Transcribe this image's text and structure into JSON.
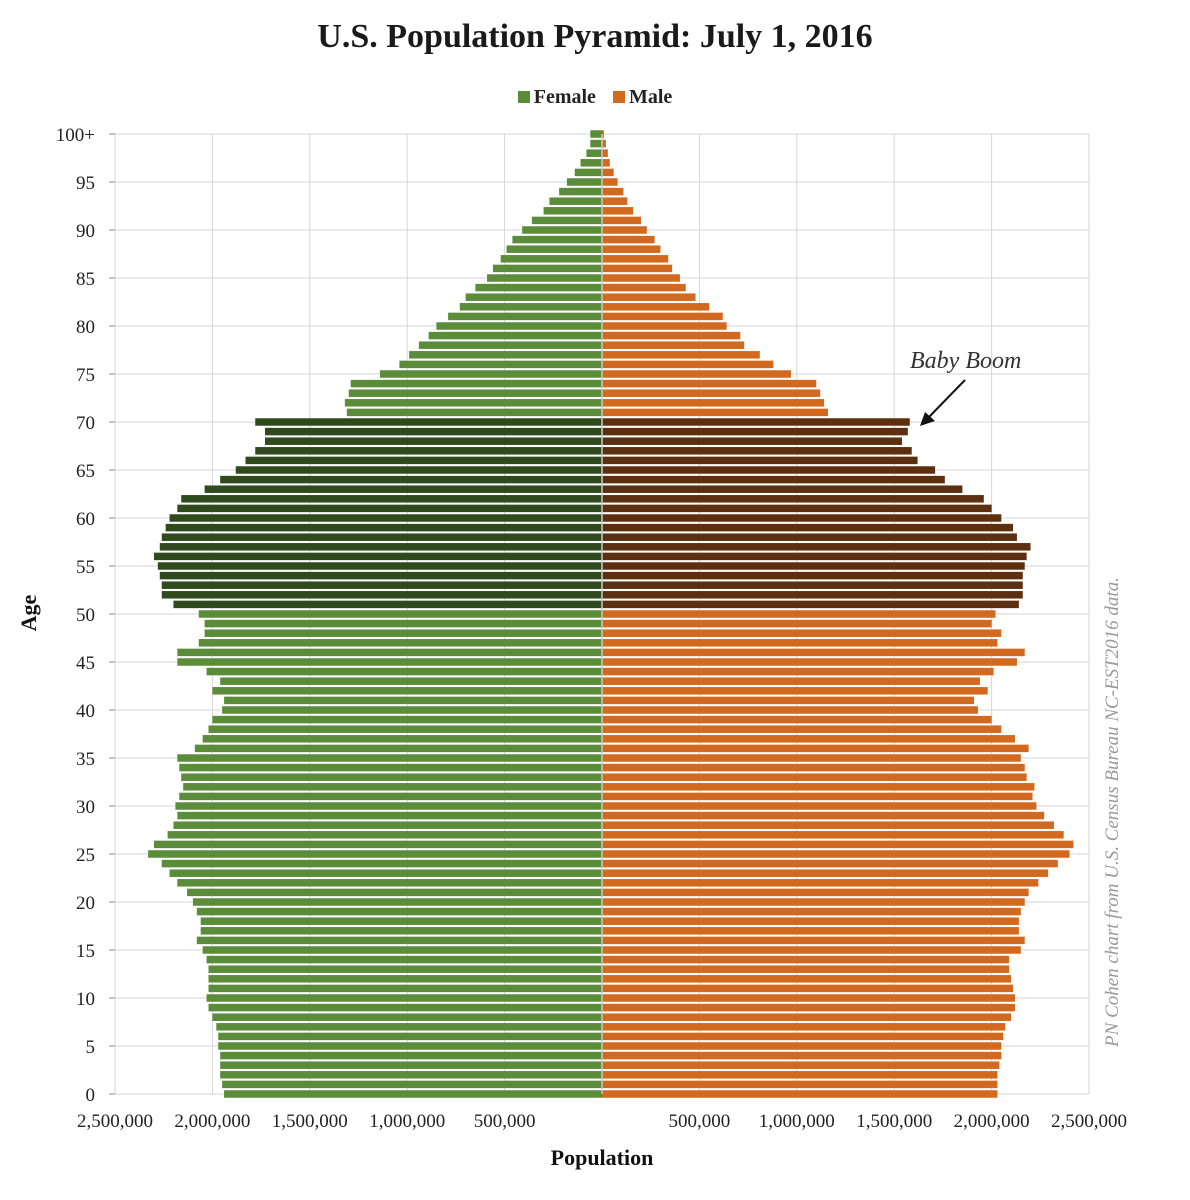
{
  "chart_data": {
    "type": "bar",
    "title": "U.S. Population Pyramid: July 1, 2016",
    "xlabel": "Population",
    "ylabel": "Age",
    "xlim": [
      -2500000,
      2500000
    ],
    "x_tick_labels": [
      "2,500,000",
      "2,000,000",
      "1,500,000",
      "1,000,000",
      "500,000",
      "",
      "500,000",
      "1,000,000",
      "1,500,000",
      "2,000,000",
      "2,500,000"
    ],
    "y_tick_labels": [
      "0",
      "5",
      "10",
      "15",
      "20",
      "25",
      "30",
      "35",
      "40",
      "45",
      "50",
      "55",
      "60",
      "65",
      "70",
      "75",
      "80",
      "85",
      "90",
      "95",
      "100+"
    ],
    "grid": true,
    "legend": "top-center",
    "categories": [
      "0",
      "1",
      "2",
      "3",
      "4",
      "5",
      "6",
      "7",
      "8",
      "9",
      "10",
      "11",
      "12",
      "13",
      "14",
      "15",
      "16",
      "17",
      "18",
      "19",
      "20",
      "21",
      "22",
      "23",
      "24",
      "25",
      "26",
      "27",
      "28",
      "29",
      "30",
      "31",
      "32",
      "33",
      "34",
      "35",
      "36",
      "37",
      "38",
      "39",
      "40",
      "41",
      "42",
      "43",
      "44",
      "45",
      "46",
      "47",
      "48",
      "49",
      "50",
      "51",
      "52",
      "53",
      "54",
      "55",
      "56",
      "57",
      "58",
      "59",
      "60",
      "61",
      "62",
      "63",
      "64",
      "65",
      "66",
      "67",
      "68",
      "69",
      "70",
      "71",
      "72",
      "73",
      "74",
      "75",
      "76",
      "77",
      "78",
      "79",
      "80",
      "81",
      "82",
      "83",
      "84",
      "85",
      "86",
      "87",
      "88",
      "89",
      "90",
      "91",
      "92",
      "93",
      "94",
      "95",
      "96",
      "97",
      "98",
      "99",
      "100+"
    ],
    "series": [
      {
        "name": "Female",
        "color": "#5b8c3a",
        "highlight_color": "#2f4a1c",
        "values": [
          1940000,
          1950000,
          1960000,
          1960000,
          1960000,
          1970000,
          1970000,
          1980000,
          2000000,
          2020000,
          2030000,
          2020000,
          2020000,
          2020000,
          2030000,
          2050000,
          2080000,
          2060000,
          2060000,
          2080000,
          2100000,
          2130000,
          2180000,
          2220000,
          2260000,
          2330000,
          2300000,
          2230000,
          2200000,
          2180000,
          2190000,
          2170000,
          2150000,
          2160000,
          2170000,
          2180000,
          2090000,
          2050000,
          2020000,
          2000000,
          1950000,
          1940000,
          2000000,
          1960000,
          2030000,
          2180000,
          2180000,
          2070000,
          2040000,
          2040000,
          2070000,
          2200000,
          2260000,
          2260000,
          2270000,
          2280000,
          2300000,
          2270000,
          2260000,
          2240000,
          2220000,
          2180000,
          2160000,
          2040000,
          1960000,
          1880000,
          1830000,
          1780000,
          1730000,
          1730000,
          1780000,
          1310000,
          1320000,
          1300000,
          1290000,
          1140000,
          1040000,
          990000,
          940000,
          890000,
          850000,
          790000,
          730000,
          700000,
          650000,
          590000,
          560000,
          520000,
          490000,
          460000,
          410000,
          360000,
          300000,
          270000,
          220000,
          180000,
          140000,
          110000,
          80000,
          60000,
          60000
        ]
      },
      {
        "name": "Male",
        "color": "#d2691e",
        "highlight_color": "#5c2f10",
        "values": [
          2030000,
          2030000,
          2030000,
          2040000,
          2050000,
          2050000,
          2060000,
          2070000,
          2100000,
          2120000,
          2120000,
          2110000,
          2100000,
          2090000,
          2090000,
          2150000,
          2170000,
          2140000,
          2140000,
          2150000,
          2170000,
          2190000,
          2240000,
          2290000,
          2340000,
          2400000,
          2420000,
          2370000,
          2320000,
          2270000,
          2230000,
          2210000,
          2220000,
          2180000,
          2170000,
          2150000,
          2190000,
          2120000,
          2050000,
          2000000,
          1930000,
          1910000,
          1980000,
          1940000,
          2010000,
          2130000,
          2170000,
          2030000,
          2050000,
          2000000,
          2020000,
          2140000,
          2160000,
          2160000,
          2160000,
          2170000,
          2180000,
          2200000,
          2130000,
          2110000,
          2050000,
          2000000,
          1960000,
          1850000,
          1760000,
          1710000,
          1620000,
          1590000,
          1540000,
          1570000,
          1580000,
          1160000,
          1140000,
          1120000,
          1100000,
          970000,
          880000,
          810000,
          730000,
          710000,
          640000,
          620000,
          550000,
          480000,
          430000,
          400000,
          360000,
          340000,
          300000,
          270000,
          230000,
          200000,
          160000,
          130000,
          110000,
          80000,
          60000,
          40000,
          30000,
          20000,
          10000
        ]
      }
    ],
    "highlight_range": [
      51,
      70
    ],
    "annotations": [
      {
        "text": "Baby Boom",
        "target_age": 70,
        "target_value": 1650000
      }
    ],
    "source_note": "PN Cohen chart from U.S. Census Bureau NC-EST2016 data."
  }
}
